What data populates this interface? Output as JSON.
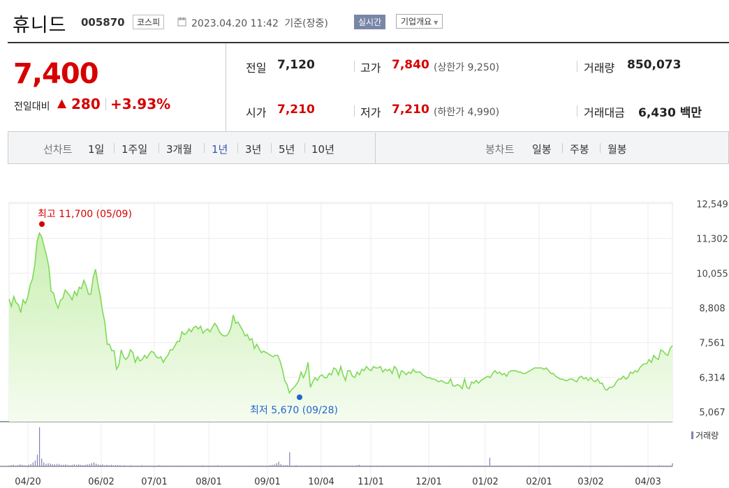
{
  "header": {
    "name": "휴니드",
    "code": "005870",
    "market": "코스피",
    "datetime": "2023.04.20 11:42",
    "basis": "기준(장중)",
    "realtime_badge": "실시간",
    "corp_overview": "기업개요"
  },
  "summary": {
    "price": "7,400",
    "change_label": "전일대비",
    "change_arrow": "▲",
    "change_value": "280",
    "change_pct": "+3.93%",
    "prev_label": "전일",
    "prev_value": "7,120",
    "high_label": "고가",
    "high_value": "7,840",
    "upper_limit": "(상한가 9,250)",
    "volume_label": "거래량",
    "volume_value": "850,073",
    "open_label": "시가",
    "open_value": "7,210",
    "low_label": "저가",
    "low_value": "7,210",
    "lower_limit": "(하한가 4,990)",
    "amount_label": "거래대금",
    "amount_value": "6,430",
    "amount_unit": "백만"
  },
  "tabs": {
    "line_head": "선차트",
    "line_items": [
      "1일",
      "1주일",
      "3개월",
      "1년",
      "3년",
      "5년",
      "10년"
    ],
    "active": "1년",
    "candle_head": "봉차트",
    "candle_items": [
      "일봉",
      "주봉",
      "월봉"
    ]
  },
  "colors": {
    "up": "#d60000",
    "down": "#2266cc",
    "line": "#7ed957",
    "area": "#e4f7d8",
    "active_tab": "#3a56b0",
    "volume": "#7b7fb8"
  },
  "chart_data": {
    "type": "area",
    "y_ticks": [
      "12,549",
      "11,302",
      "10,055",
      "8,808",
      "7,561",
      "6,314",
      "5,067"
    ],
    "ylim": [
      5067,
      12549
    ],
    "x_ticks": [
      "04/20",
      "06/02",
      "07/01",
      "08/01",
      "09/01",
      "10/04",
      "11/01",
      "12/01",
      "01/02",
      "02/01",
      "03/02",
      "04/03"
    ],
    "high_annotation": "최고 11,700 (05/09)",
    "low_annotation": "최저 5,670 (09/28)",
    "volume_legend": "거래량",
    "series": [
      {
        "values": [
          9130,
          8860,
          9220,
          9000,
          8920,
          8640,
          9100,
          8960,
          9200,
          9630,
          9850,
          10350,
          11200,
          11500,
          11360,
          11020,
          10700,
          10300,
          9400,
          9350,
          9000,
          8800,
          9090,
          9150,
          9450,
          9350,
          9250,
          9100,
          9400,
          9250,
          9550,
          9500,
          9800,
          9600,
          9300,
          9300,
          9900,
          10200,
          9700,
          9250,
          8700,
          8300,
          7500,
          7500,
          7270,
          7270,
          6600,
          6750,
          7300,
          7050,
          6950,
          7050,
          7300,
          7200,
          6850,
          7050,
          6900,
          6950,
          7100,
          7000,
          7150,
          7250,
          7200,
          7050,
          7000,
          7050,
          6850,
          7000,
          7100,
          7300,
          7300,
          7450,
          7600,
          7600,
          7950,
          7850,
          7900,
          8050,
          7950,
          8100,
          8150,
          8050,
          8150,
          7900,
          8000,
          8050,
          7950,
          8100,
          8250,
          8150,
          7950,
          7850,
          7800,
          7800,
          7900,
          8100,
          8550,
          8250,
          8300,
          8150,
          8000,
          7800,
          7850,
          7650,
          7700,
          7350,
          7500,
          7350,
          7200,
          7250,
          7200,
          7150,
          7100,
          7050,
          7100,
          7100,
          6900,
          6600,
          6200,
          6050,
          5750,
          5870,
          5950,
          6050,
          6200,
          6500,
          6300,
          6500,
          6850,
          5950,
          6150,
          6300,
          6200,
          6350,
          6400,
          6300,
          6300,
          6450,
          6400,
          6650,
          6600,
          6400,
          6700,
          6400,
          6200,
          6550,
          6550,
          6350,
          6300,
          6500,
          6400,
          6600,
          6550,
          6700,
          6600,
          6550,
          6700,
          6650,
          6650,
          6700,
          6500,
          6600,
          6550,
          6600,
          6450,
          6700,
          6600,
          6300,
          6550,
          6500,
          6400,
          6500,
          6450,
          6600,
          6500,
          6500,
          6500,
          6400,
          6350,
          6300,
          6300,
          6250,
          6250,
          6200,
          6150,
          6200,
          6150,
          6100,
          6100,
          6250,
          6000,
          6000,
          6050,
          6000,
          5900,
          6250,
          5950,
          5900,
          6150,
          6100,
          6200,
          6100,
          6200,
          6250,
          6300,
          6350,
          6300,
          6450,
          6550,
          6450,
          6500,
          6400,
          6450,
          6350,
          6500,
          6550,
          6550,
          6550,
          6500,
          6500,
          6450,
          6450,
          6500,
          6550,
          6600,
          6650,
          6650,
          6650,
          6650,
          6600,
          6650,
          6550,
          6450,
          6450,
          6350,
          6300,
          6250,
          6250,
          6200,
          6200,
          6250,
          6250,
          6200,
          6150,
          6300,
          6350,
          6250,
          6300,
          6200,
          6300,
          6200,
          6150,
          6250,
          6100,
          6100,
          5900,
          5850,
          5950,
          5950,
          6000,
          6150,
          6250,
          6250,
          6350,
          6250,
          6300,
          6500,
          6450,
          6550,
          6500,
          6650,
          6750,
          6800,
          6800,
          6950,
          6850,
          7100,
          7000,
          6950,
          7300,
          7250,
          7150,
          7100,
          7350,
          7450
        ]
      }
    ],
    "volume": [
      2,
      3,
      4,
      2,
      3,
      5,
      4,
      3,
      2,
      4,
      6,
      10,
      15,
      30,
      100,
      20,
      10,
      6,
      8,
      7,
      5,
      5,
      6,
      6,
      4,
      4,
      5,
      4,
      3,
      4,
      5,
      4,
      5,
      4,
      3,
      4,
      5,
      6,
      8,
      10,
      7,
      5,
      4,
      5,
      3,
      4,
      3,
      4,
      3,
      3,
      3,
      3,
      2,
      3,
      2,
      2,
      3,
      2,
      2,
      2,
      2,
      3,
      2,
      2,
      2,
      2,
      2,
      2,
      2,
      3,
      2,
      2,
      2,
      2,
      2,
      2,
      2,
      2,
      2,
      2,
      2,
      2,
      2,
      2,
      2,
      2,
      2,
      2,
      2,
      3,
      2,
      2,
      2,
      2,
      2,
      2,
      3,
      2,
      2,
      2,
      2,
      2,
      2,
      2,
      2,
      2,
      2,
      2,
      2,
      2,
      2,
      2,
      2,
      2,
      2,
      2,
      2,
      2,
      2,
      2,
      3,
      4,
      5,
      8,
      12,
      6,
      3,
      3,
      3,
      36,
      2,
      2,
      3,
      2,
      2,
      2,
      2,
      2,
      2,
      2,
      2,
      2,
      2,
      2,
      2,
      2,
      2,
      2,
      2,
      2,
      2,
      2,
      2,
      2,
      2,
      2,
      2,
      2,
      2,
      2,
      3,
      4,
      2,
      2,
      2,
      2,
      2,
      2,
      2,
      2,
      2,
      2,
      2,
      2,
      2,
      2,
      2,
      2,
      2,
      2,
      2,
      2,
      2,
      2,
      2,
      2,
      2,
      2,
      2,
      2,
      2,
      2,
      2,
      2,
      2,
      2,
      2,
      2,
      2,
      2,
      2,
      2,
      2,
      2,
      2,
      2,
      2,
      2,
      2,
      2,
      2,
      2,
      2,
      2,
      2,
      2,
      2,
      2,
      2,
      2,
      2,
      22,
      2,
      2,
      2,
      2,
      2,
      2,
      2,
      2,
      2,
      2,
      2,
      2,
      2,
      2,
      2,
      2,
      2,
      2,
      2,
      2,
      2,
      2,
      2,
      2,
      2,
      2,
      2,
      2,
      2,
      2,
      2,
      2,
      2,
      2,
      2,
      2,
      2,
      2,
      2,
      2,
      2,
      2,
      2,
      2,
      2,
      2,
      2,
      2,
      2,
      2,
      2,
      2,
      2,
      2,
      2,
      2,
      2,
      2,
      2,
      2,
      2,
      2,
      2,
      2,
      2,
      2,
      2,
      2,
      2,
      2,
      2,
      2,
      2,
      2,
      2,
      2,
      2,
      3,
      2,
      2,
      2,
      2,
      2,
      8
    ]
  }
}
